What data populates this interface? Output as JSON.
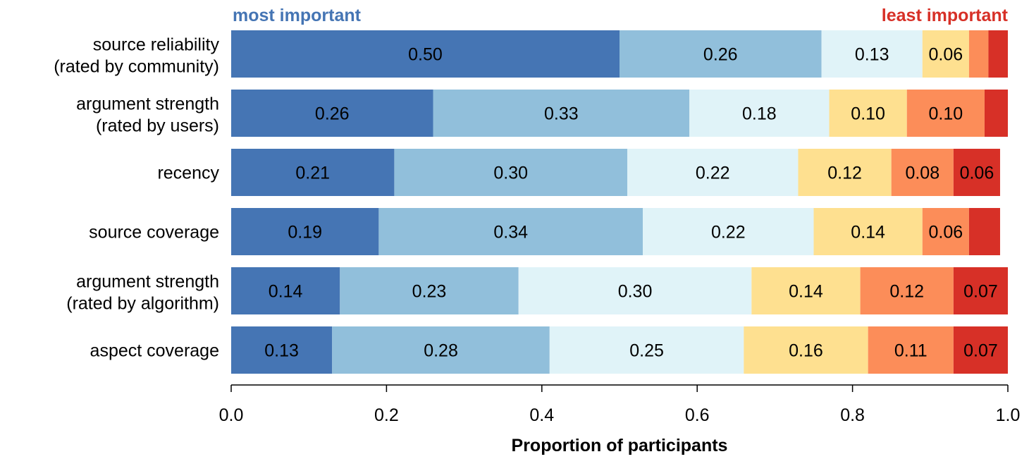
{
  "chart_data": {
    "type": "bar",
    "orientation": "horizontal",
    "stacked": true,
    "xlabel": "Proportion of participants",
    "xlim": [
      0,
      1
    ],
    "xticks": [
      0.0,
      0.2,
      0.4,
      0.6,
      0.8,
      1.0
    ],
    "xtick_labels": [
      "0.0",
      "0.2",
      "0.4",
      "0.6",
      "0.8",
      "1.0"
    ],
    "legend": {
      "left_label": "most important",
      "right_label": "least important",
      "left_color": "#4575b4",
      "right_color": "#d73027"
    },
    "segment_colors": [
      "#4575b4",
      "#91bfdb",
      "#e0f3f8",
      "#fee090",
      "#fc8d59",
      "#d73027"
    ],
    "categories": [
      {
        "lines": [
          "source reliability",
          "(rated by community)"
        ],
        "values": [
          0.5,
          0.26,
          0.13,
          0.06,
          0.025,
          0.025
        ],
        "labels": [
          "0.50",
          "0.26",
          "0.13",
          "0.06",
          "",
          ""
        ]
      },
      {
        "lines": [
          "argument strength",
          "(rated by users)"
        ],
        "values": [
          0.26,
          0.33,
          0.18,
          0.1,
          0.1,
          0.03
        ],
        "labels": [
          "0.26",
          "0.33",
          "0.18",
          "0.10",
          "0.10",
          ""
        ]
      },
      {
        "lines": [
          "recency"
        ],
        "values": [
          0.21,
          0.3,
          0.22,
          0.12,
          0.08,
          0.06
        ],
        "labels": [
          "0.21",
          "0.30",
          "0.22",
          "0.12",
          "0.08",
          "0.06"
        ]
      },
      {
        "lines": [
          "source coverage"
        ],
        "values": [
          0.19,
          0.34,
          0.22,
          0.14,
          0.06,
          0.04
        ],
        "labels": [
          "0.19",
          "0.34",
          "0.22",
          "0.14",
          "0.06",
          ""
        ]
      },
      {
        "lines": [
          "argument strength",
          "(rated by algorithm)"
        ],
        "values": [
          0.14,
          0.23,
          0.3,
          0.14,
          0.12,
          0.07
        ],
        "labels": [
          "0.14",
          "0.23",
          "0.30",
          "0.14",
          "0.12",
          "0.07"
        ]
      },
      {
        "lines": [
          "aspect coverage"
        ],
        "values": [
          0.13,
          0.28,
          0.25,
          0.16,
          0.11,
          0.07
        ],
        "labels": [
          "0.13",
          "0.28",
          "0.25",
          "0.16",
          "0.11",
          "0.07"
        ]
      }
    ]
  }
}
